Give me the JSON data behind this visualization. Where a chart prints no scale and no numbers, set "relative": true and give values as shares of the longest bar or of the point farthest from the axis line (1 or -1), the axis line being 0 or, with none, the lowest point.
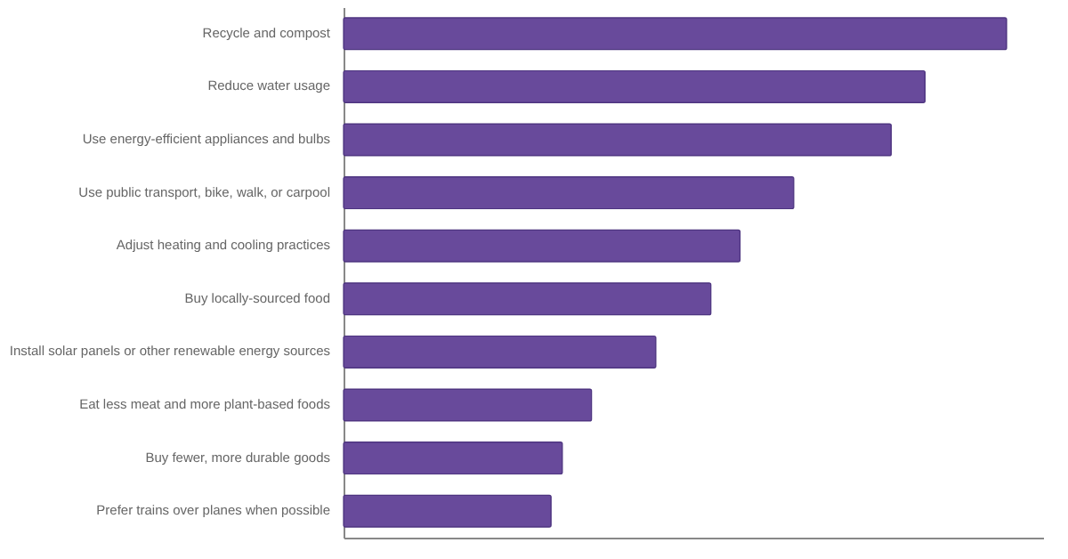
{
  "chart_data": {
    "type": "bar",
    "orientation": "horizontal",
    "relative": true,
    "color": "#684a9b",
    "categories": [
      "Recycle and compost",
      "Reduce water usage",
      "Use energy-efficient appliances and bulbs",
      "Use public transport, bike, walk, or carpool",
      "Adjust heating and cooling practices",
      "Buy locally-sourced food",
      "Install solar panels or other renewable energy sources",
      "Eat less meat and more plant-based foods",
      "Buy fewer, more durable goods",
      "Prefer trains over planes when possible"
    ],
    "values": [
      1,
      0.877,
      0.826,
      0.679,
      0.598,
      0.554,
      0.471,
      0.374,
      0.33,
      0.313
    ]
  }
}
